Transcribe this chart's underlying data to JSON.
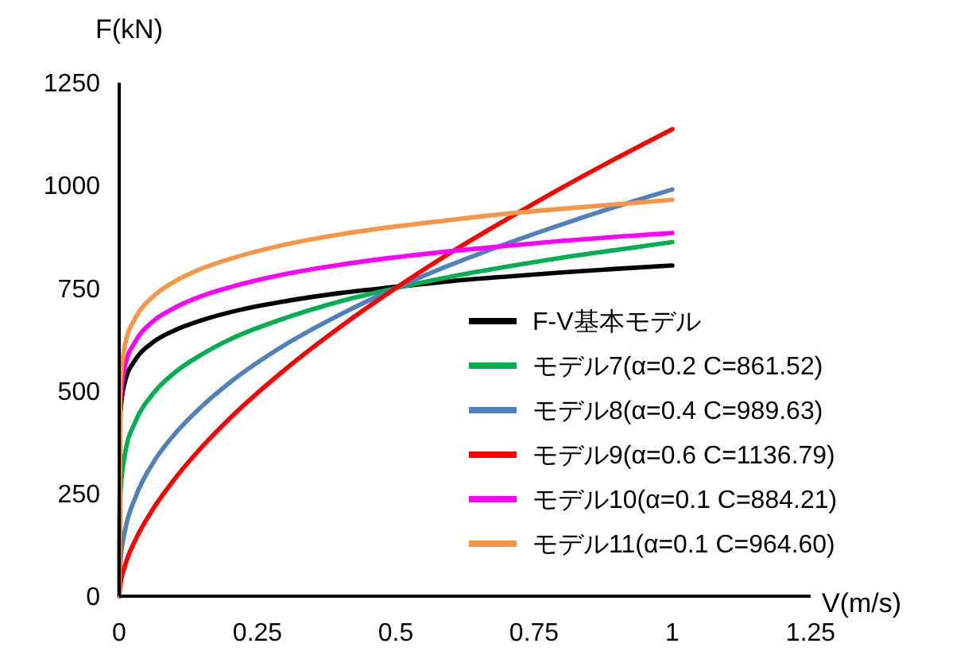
{
  "chart_data": {
    "type": "line",
    "xlabel": "V(m/s)",
    "ylabel": "F(kN)",
    "x": [
      0,
      0.002,
      0.01,
      0.03,
      0.06,
      0.1,
      0.15,
      0.2,
      0.3,
      0.4,
      0.5,
      0.6,
      0.7,
      0.8,
      0.9,
      1
    ],
    "series": [
      {
        "name": "F-V基本モデル",
        "color": "#000000",
        "values": [
          0,
          446,
          520,
          577,
          617,
          647,
          672,
          691,
          718,
          738,
          753,
          767,
          778,
          788,
          797,
          805
        ]
      },
      {
        "name": "モデル7(α=0.2 C=861.52)",
        "color": "#00b050",
        "values": [
          0,
          248,
          343,
          427,
          491,
          544,
          589,
          625,
          677,
          718,
          750,
          778,
          802,
          824,
          843,
          862
        ]
      },
      {
        "name": "モデル8(α=0.4 C=989.63)",
        "color": "#4f81bd",
        "values": [
          0,
          82,
          156,
          243,
          322,
          394,
          463,
          520,
          612,
          686,
          750,
          807,
          858,
          905,
          949,
          990
        ]
      },
      {
        "name": "モデル9(α=0.6 C=1136.79)",
        "color": "#ff0000",
        "values": [
          0,
          27,
          72,
          139,
          210,
          285,
          364,
          433,
          552,
          656,
          750,
          837,
          917,
          994,
          1067,
          1137
        ]
      },
      {
        "name": "モデル10(α=0.1 C=884.21)",
        "color": "#ff00ff",
        "values": [
          0,
          475,
          558,
          622,
          668,
          702,
          731,
          752,
          784,
          807,
          825,
          840,
          853,
          865,
          875,
          884
        ]
      },
      {
        "name": "モデル11(α=0.1 C=964.60)",
        "color": "#f79646",
        "values": [
          0,
          518,
          609,
          679,
          728,
          766,
          798,
          821,
          856,
          881,
          900,
          916,
          931,
          943,
          954,
          965
        ]
      }
    ],
    "xlim": [
      0,
      1.25
    ],
    "xticks": [
      0,
      0.25,
      0.5,
      0.75,
      1,
      1.25
    ],
    "ylim": [
      0,
      1250
    ],
    "yticks": [
      0,
      250,
      500,
      750,
      1000,
      1250
    ],
    "grid": false,
    "legend": "bottom right",
    "marker": "none",
    "line_style": "solid"
  }
}
